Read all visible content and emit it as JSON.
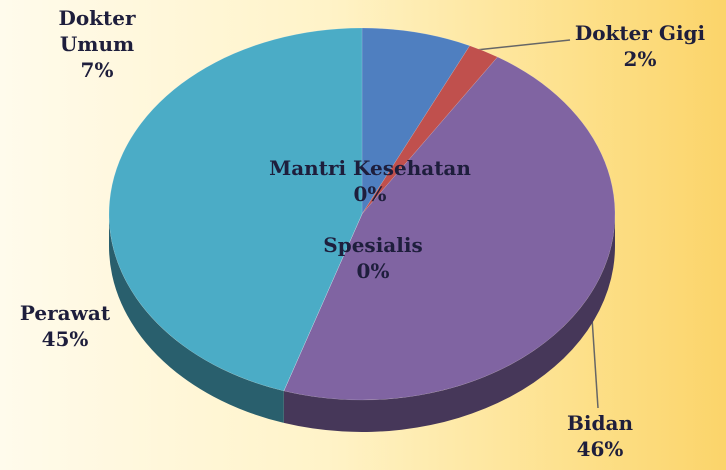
{
  "chart_data": {
    "type": "pie",
    "categories": [
      "Dokter Umum",
      "Dokter Gigi",
      "Bidan",
      "Mantri Kesehatan",
      "Spesialis",
      "Perawat"
    ],
    "values": [
      7,
      2,
      46,
      0,
      0,
      45
    ],
    "value_labels": [
      "7%",
      "2%",
      "46%",
      "0%",
      "0%",
      "45%"
    ],
    "colors": [
      "#4f7fc0",
      "#c0504d",
      "#8064a2",
      "#9bbb59",
      "#f79646",
      "#4bacc6"
    ]
  }
}
